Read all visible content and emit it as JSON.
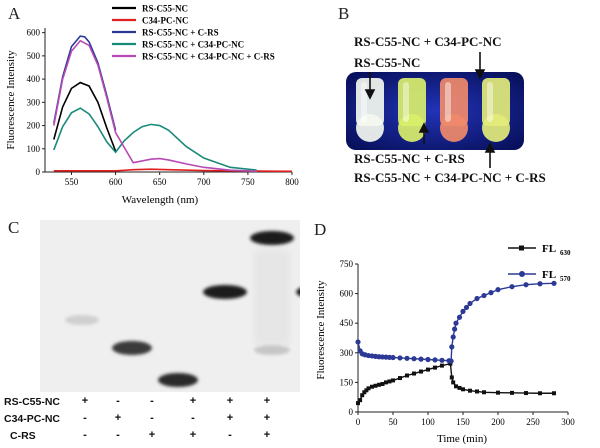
{
  "panels": {
    "a": "A",
    "b": "B",
    "c": "C",
    "d": "D"
  },
  "panel_b": {
    "labels": {
      "top": "RS-C55-NC + C34-PC-NC",
      "second": "RS-C55-NC",
      "bottom1": "RS-C55-NC + C-RS",
      "bottom2": "RS-C55-NC + C34-PC-NC + C-RS"
    },
    "tube_colors": [
      "#f4f8f0",
      "#d9ef6a",
      "#f08a6a",
      "#e3ec7a"
    ],
    "background": "#0a1a86"
  },
  "panel_c": {
    "row_labels": [
      "RS-C55-NC",
      "C34-PC-NC",
      "C-RS"
    ],
    "lane_signs": [
      [
        "+",
        "-",
        "-",
        "+",
        "+",
        "+"
      ],
      [
        "-",
        "+",
        "-",
        "-",
        "+",
        "+"
      ],
      [
        "-",
        "-",
        "+",
        "+",
        "-",
        "+"
      ]
    ]
  },
  "chart_data": [
    {
      "type": "line",
      "xlabel": "Wavelength (nm)",
      "ylabel": "Fluorescence Intensity",
      "xlim": [
        520,
        800
      ],
      "ylim": [
        0,
        620
      ],
      "xticks": [
        "550",
        "600",
        "650",
        "700",
        "750",
        "800"
      ],
      "yticks": [
        "0",
        "100",
        "200",
        "300",
        "400",
        "500",
        "600"
      ],
      "legend_position": "top-right",
      "series": [
        {
          "name": "RS-C55-NC",
          "color": "#000000",
          "x": [
            530,
            540,
            550,
            560,
            570,
            580,
            590,
            600
          ],
          "y": [
            140,
            280,
            360,
            385,
            370,
            300,
            190,
            90
          ]
        },
        {
          "name": "C34-PC-NC",
          "color": "#e02020",
          "x": [
            530,
            560,
            600,
            620,
            640,
            660,
            700,
            760,
            800
          ],
          "y": [
            5,
            5,
            5,
            10,
            12,
            10,
            6,
            4,
            3
          ]
        },
        {
          "name": "RS-C55-NC + C-RS",
          "color": "#2c3a96",
          "x": [
            530,
            540,
            550,
            560,
            565,
            570,
            580,
            590,
            600
          ],
          "y": [
            210,
            410,
            540,
            585,
            582,
            560,
            470,
            330,
            180
          ]
        },
        {
          "name": "RS-C55-NC + C34-PC-NC",
          "color": "#1a8a7a",
          "x": [
            530,
            540,
            550,
            560,
            570,
            580,
            590,
            600,
            610,
            620,
            630,
            640,
            650,
            660,
            680,
            700,
            730,
            760
          ],
          "y": [
            95,
            195,
            255,
            275,
            250,
            195,
            130,
            85,
            135,
            170,
            195,
            205,
            200,
            180,
            110,
            60,
            20,
            8
          ]
        },
        {
          "name": "RS-C55-NC + C34-PC-NC + C-RS",
          "color": "#b84ab4",
          "x": [
            530,
            540,
            550,
            560,
            565,
            570,
            580,
            590,
            600,
            620,
            640,
            650,
            660,
            680,
            700,
            730,
            760
          ],
          "y": [
            200,
            400,
            520,
            565,
            555,
            545,
            460,
            320,
            170,
            40,
            55,
            58,
            52,
            35,
            20,
            8,
            3
          ]
        }
      ]
    },
    {
      "type": "line",
      "xlabel": "Time (min)",
      "ylabel": "Fluorescence Intensity",
      "xlim": [
        0,
        300
      ],
      "ylim": [
        0,
        750
      ],
      "xticks": [
        "0",
        "50",
        "100",
        "150",
        "200",
        "250",
        "300"
      ],
      "yticks": [
        "0",
        "150",
        "300",
        "450",
        "600",
        "750"
      ],
      "legend_position": "top-right",
      "series": [
        {
          "name": "FL",
          "sub": "630",
          "color": "#111111",
          "marker": "square",
          "x": [
            0,
            3,
            6,
            9,
            12,
            15,
            20,
            25,
            30,
            35,
            40,
            45,
            50,
            60,
            70,
            80,
            90,
            100,
            110,
            120,
            132,
            134,
            136,
            140,
            145,
            150,
            160,
            170,
            180,
            200,
            220,
            240,
            260,
            280
          ],
          "y": [
            45,
            60,
            85,
            100,
            110,
            120,
            128,
            133,
            138,
            142,
            150,
            155,
            160,
            172,
            185,
            195,
            205,
            215,
            225,
            235,
            245,
            175,
            150,
            130,
            122,
            115,
            108,
            104,
            100,
            98,
            97,
            96,
            95,
            95
          ]
        },
        {
          "name": "FL",
          "sub": "570",
          "color": "#2c3a96",
          "marker": "circle",
          "x": [
            0,
            3,
            6,
            10,
            15,
            20,
            25,
            30,
            35,
            40,
            45,
            50,
            60,
            70,
            80,
            90,
            100,
            110,
            120,
            130,
            133,
            134,
            136,
            138,
            140,
            145,
            150,
            155,
            160,
            170,
            180,
            190,
            200,
            220,
            240,
            260,
            280
          ],
          "y": [
            355,
            310,
            295,
            290,
            286,
            284,
            282,
            280,
            279,
            278,
            277,
            276,
            274,
            272,
            270,
            268,
            266,
            264,
            262,
            260,
            258,
            330,
            380,
            420,
            450,
            480,
            510,
            530,
            550,
            575,
            590,
            605,
            620,
            635,
            645,
            650,
            652
          ]
        }
      ]
    }
  ]
}
